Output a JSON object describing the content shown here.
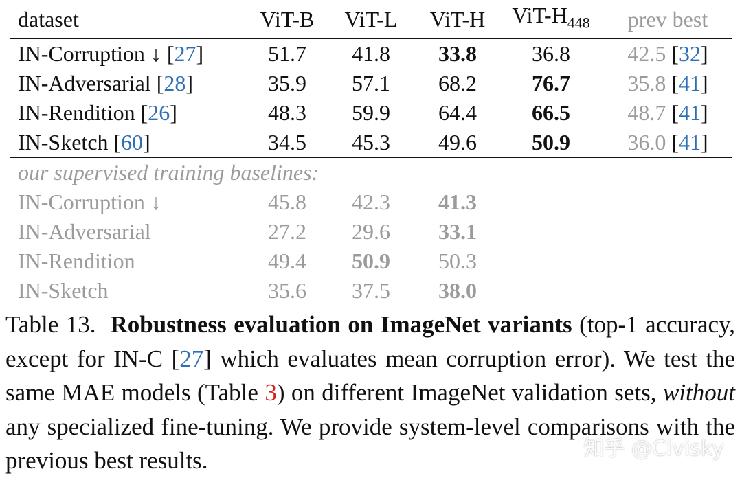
{
  "table": {
    "columns": [
      "dataset",
      "ViT-B",
      "ViT-L",
      "ViT-H",
      "ViT-H",
      "prev best"
    ],
    "vith448_base": "ViT-H",
    "vith448_sub": "448",
    "rows": [
      {
        "name": "IN-Corruption ↓ ",
        "ref": "27",
        "values": [
          "51.7",
          "41.8",
          "33.8",
          "36.8"
        ],
        "bold": [
          false,
          false,
          true,
          false
        ],
        "prev": "42.5",
        "prev_ref": "32"
      },
      {
        "name": "IN-Adversarial ",
        "ref": "28",
        "values": [
          "35.9",
          "57.1",
          "68.2",
          "76.7"
        ],
        "bold": [
          false,
          false,
          false,
          true
        ],
        "prev": "35.8",
        "prev_ref": "41"
      },
      {
        "name": "IN-Rendition ",
        "ref": "26",
        "values": [
          "48.3",
          "59.9",
          "64.4",
          "66.5"
        ],
        "bold": [
          false,
          false,
          false,
          true
        ],
        "prev": "48.7",
        "prev_ref": "41"
      },
      {
        "name": "IN-Sketch ",
        "ref": "60",
        "values": [
          "34.5",
          "45.3",
          "49.6",
          "50.9"
        ],
        "bold": [
          false,
          false,
          false,
          true
        ],
        "prev": "36.0",
        "prev_ref": "41"
      }
    ],
    "section_label": "our supervised training baselines:",
    "baseline_rows": [
      {
        "name": "IN-Corruption ↓",
        "values": [
          "45.8",
          "42.3",
          "41.3"
        ],
        "bold": [
          false,
          false,
          true
        ]
      },
      {
        "name": "IN-Adversarial",
        "values": [
          "27.2",
          "29.6",
          "33.1"
        ],
        "bold": [
          false,
          false,
          true
        ]
      },
      {
        "name": "IN-Rendition",
        "values": [
          "49.4",
          "50.9",
          "50.3"
        ],
        "bold": [
          false,
          true,
          false
        ]
      },
      {
        "name": "IN-Sketch",
        "values": [
          "35.6",
          "37.5",
          "38.0"
        ],
        "bold": [
          false,
          false,
          true
        ]
      }
    ]
  },
  "caption": {
    "label": "Table 13.",
    "bold_title": "Robustness evaluation on ImageNet variants",
    "part1": " (top-1 accuracy, except for IN-C [",
    "ref1": "27",
    "part2": "] which evaluates mean corruption error). We test the same MAE models (Table ",
    "ref2": "3",
    "part3": ") on different ImageNet validation sets, ",
    "italic": "without",
    "part4": " any specialized fine-tuning. We provide system-level comparisons with the previous best results."
  },
  "watermark": "知乎 @Civisky"
}
